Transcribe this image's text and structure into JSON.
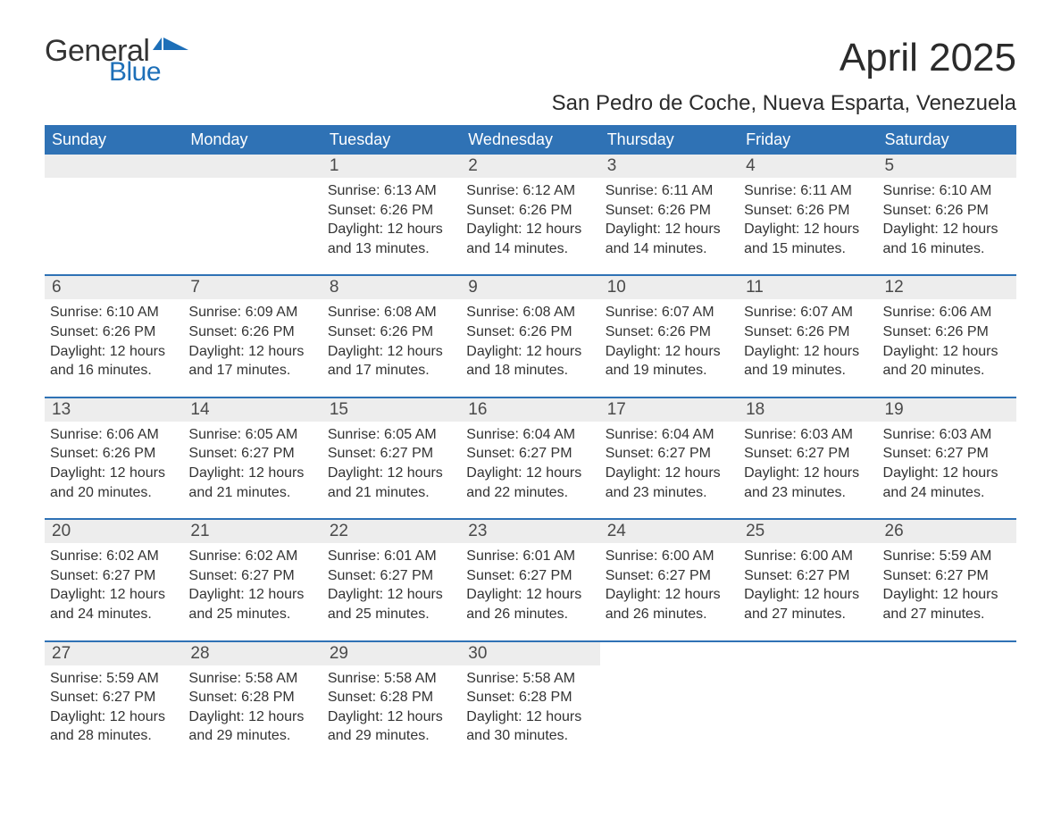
{
  "brand": {
    "part1": "General",
    "part2": "Blue"
  },
  "title": "April 2025",
  "location": "San Pedro de Coche, Nueva Esparta, Venezuela",
  "colors": {
    "header_bg": "#2f72b5",
    "header_text": "#ffffff",
    "daynum_bg": "#ededed",
    "week_border": "#2f72b5",
    "logo_blue": "#1d6fb8",
    "body_text": "#333333",
    "page_bg": "#ffffff"
  },
  "typography": {
    "title_fontsize": 44,
    "location_fontsize": 24,
    "weekday_fontsize": 18,
    "daynum_fontsize": 19,
    "body_fontsize": 16
  },
  "weekdays": [
    "Sunday",
    "Monday",
    "Tuesday",
    "Wednesday",
    "Thursday",
    "Friday",
    "Saturday"
  ],
  "weeks": [
    [
      {
        "day": "",
        "sunrise": "",
        "sunset": "",
        "daylight1": "",
        "daylight2": ""
      },
      {
        "day": "",
        "sunrise": "",
        "sunset": "",
        "daylight1": "",
        "daylight2": ""
      },
      {
        "day": "1",
        "sunrise": "Sunrise: 6:13 AM",
        "sunset": "Sunset: 6:26 PM",
        "daylight1": "Daylight: 12 hours",
        "daylight2": "and 13 minutes."
      },
      {
        "day": "2",
        "sunrise": "Sunrise: 6:12 AM",
        "sunset": "Sunset: 6:26 PM",
        "daylight1": "Daylight: 12 hours",
        "daylight2": "and 14 minutes."
      },
      {
        "day": "3",
        "sunrise": "Sunrise: 6:11 AM",
        "sunset": "Sunset: 6:26 PM",
        "daylight1": "Daylight: 12 hours",
        "daylight2": "and 14 minutes."
      },
      {
        "day": "4",
        "sunrise": "Sunrise: 6:11 AM",
        "sunset": "Sunset: 6:26 PM",
        "daylight1": "Daylight: 12 hours",
        "daylight2": "and 15 minutes."
      },
      {
        "day": "5",
        "sunrise": "Sunrise: 6:10 AM",
        "sunset": "Sunset: 6:26 PM",
        "daylight1": "Daylight: 12 hours",
        "daylight2": "and 16 minutes."
      }
    ],
    [
      {
        "day": "6",
        "sunrise": "Sunrise: 6:10 AM",
        "sunset": "Sunset: 6:26 PM",
        "daylight1": "Daylight: 12 hours",
        "daylight2": "and 16 minutes."
      },
      {
        "day": "7",
        "sunrise": "Sunrise: 6:09 AM",
        "sunset": "Sunset: 6:26 PM",
        "daylight1": "Daylight: 12 hours",
        "daylight2": "and 17 minutes."
      },
      {
        "day": "8",
        "sunrise": "Sunrise: 6:08 AM",
        "sunset": "Sunset: 6:26 PM",
        "daylight1": "Daylight: 12 hours",
        "daylight2": "and 17 minutes."
      },
      {
        "day": "9",
        "sunrise": "Sunrise: 6:08 AM",
        "sunset": "Sunset: 6:26 PM",
        "daylight1": "Daylight: 12 hours",
        "daylight2": "and 18 minutes."
      },
      {
        "day": "10",
        "sunrise": "Sunrise: 6:07 AM",
        "sunset": "Sunset: 6:26 PM",
        "daylight1": "Daylight: 12 hours",
        "daylight2": "and 19 minutes."
      },
      {
        "day": "11",
        "sunrise": "Sunrise: 6:07 AM",
        "sunset": "Sunset: 6:26 PM",
        "daylight1": "Daylight: 12 hours",
        "daylight2": "and 19 minutes."
      },
      {
        "day": "12",
        "sunrise": "Sunrise: 6:06 AM",
        "sunset": "Sunset: 6:26 PM",
        "daylight1": "Daylight: 12 hours",
        "daylight2": "and 20 minutes."
      }
    ],
    [
      {
        "day": "13",
        "sunrise": "Sunrise: 6:06 AM",
        "sunset": "Sunset: 6:26 PM",
        "daylight1": "Daylight: 12 hours",
        "daylight2": "and 20 minutes."
      },
      {
        "day": "14",
        "sunrise": "Sunrise: 6:05 AM",
        "sunset": "Sunset: 6:27 PM",
        "daylight1": "Daylight: 12 hours",
        "daylight2": "and 21 minutes."
      },
      {
        "day": "15",
        "sunrise": "Sunrise: 6:05 AM",
        "sunset": "Sunset: 6:27 PM",
        "daylight1": "Daylight: 12 hours",
        "daylight2": "and 21 minutes."
      },
      {
        "day": "16",
        "sunrise": "Sunrise: 6:04 AM",
        "sunset": "Sunset: 6:27 PM",
        "daylight1": "Daylight: 12 hours",
        "daylight2": "and 22 minutes."
      },
      {
        "day": "17",
        "sunrise": "Sunrise: 6:04 AM",
        "sunset": "Sunset: 6:27 PM",
        "daylight1": "Daylight: 12 hours",
        "daylight2": "and 23 minutes."
      },
      {
        "day": "18",
        "sunrise": "Sunrise: 6:03 AM",
        "sunset": "Sunset: 6:27 PM",
        "daylight1": "Daylight: 12 hours",
        "daylight2": "and 23 minutes."
      },
      {
        "day": "19",
        "sunrise": "Sunrise: 6:03 AM",
        "sunset": "Sunset: 6:27 PM",
        "daylight1": "Daylight: 12 hours",
        "daylight2": "and 24 minutes."
      }
    ],
    [
      {
        "day": "20",
        "sunrise": "Sunrise: 6:02 AM",
        "sunset": "Sunset: 6:27 PM",
        "daylight1": "Daylight: 12 hours",
        "daylight2": "and 24 minutes."
      },
      {
        "day": "21",
        "sunrise": "Sunrise: 6:02 AM",
        "sunset": "Sunset: 6:27 PM",
        "daylight1": "Daylight: 12 hours",
        "daylight2": "and 25 minutes."
      },
      {
        "day": "22",
        "sunrise": "Sunrise: 6:01 AM",
        "sunset": "Sunset: 6:27 PM",
        "daylight1": "Daylight: 12 hours",
        "daylight2": "and 25 minutes."
      },
      {
        "day": "23",
        "sunrise": "Sunrise: 6:01 AM",
        "sunset": "Sunset: 6:27 PM",
        "daylight1": "Daylight: 12 hours",
        "daylight2": "and 26 minutes."
      },
      {
        "day": "24",
        "sunrise": "Sunrise: 6:00 AM",
        "sunset": "Sunset: 6:27 PM",
        "daylight1": "Daylight: 12 hours",
        "daylight2": "and 26 minutes."
      },
      {
        "day": "25",
        "sunrise": "Sunrise: 6:00 AM",
        "sunset": "Sunset: 6:27 PM",
        "daylight1": "Daylight: 12 hours",
        "daylight2": "and 27 minutes."
      },
      {
        "day": "26",
        "sunrise": "Sunrise: 5:59 AM",
        "sunset": "Sunset: 6:27 PM",
        "daylight1": "Daylight: 12 hours",
        "daylight2": "and 27 minutes."
      }
    ],
    [
      {
        "day": "27",
        "sunrise": "Sunrise: 5:59 AM",
        "sunset": "Sunset: 6:27 PM",
        "daylight1": "Daylight: 12 hours",
        "daylight2": "and 28 minutes."
      },
      {
        "day": "28",
        "sunrise": "Sunrise: 5:58 AM",
        "sunset": "Sunset: 6:28 PM",
        "daylight1": "Daylight: 12 hours",
        "daylight2": "and 29 minutes."
      },
      {
        "day": "29",
        "sunrise": "Sunrise: 5:58 AM",
        "sunset": "Sunset: 6:28 PM",
        "daylight1": "Daylight: 12 hours",
        "daylight2": "and 29 minutes."
      },
      {
        "day": "30",
        "sunrise": "Sunrise: 5:58 AM",
        "sunset": "Sunset: 6:28 PM",
        "daylight1": "Daylight: 12 hours",
        "daylight2": "and 30 minutes."
      },
      {
        "day": "",
        "sunrise": "",
        "sunset": "",
        "daylight1": "",
        "daylight2": ""
      },
      {
        "day": "",
        "sunrise": "",
        "sunset": "",
        "daylight1": "",
        "daylight2": ""
      },
      {
        "day": "",
        "sunrise": "",
        "sunset": "",
        "daylight1": "",
        "daylight2": ""
      }
    ]
  ]
}
